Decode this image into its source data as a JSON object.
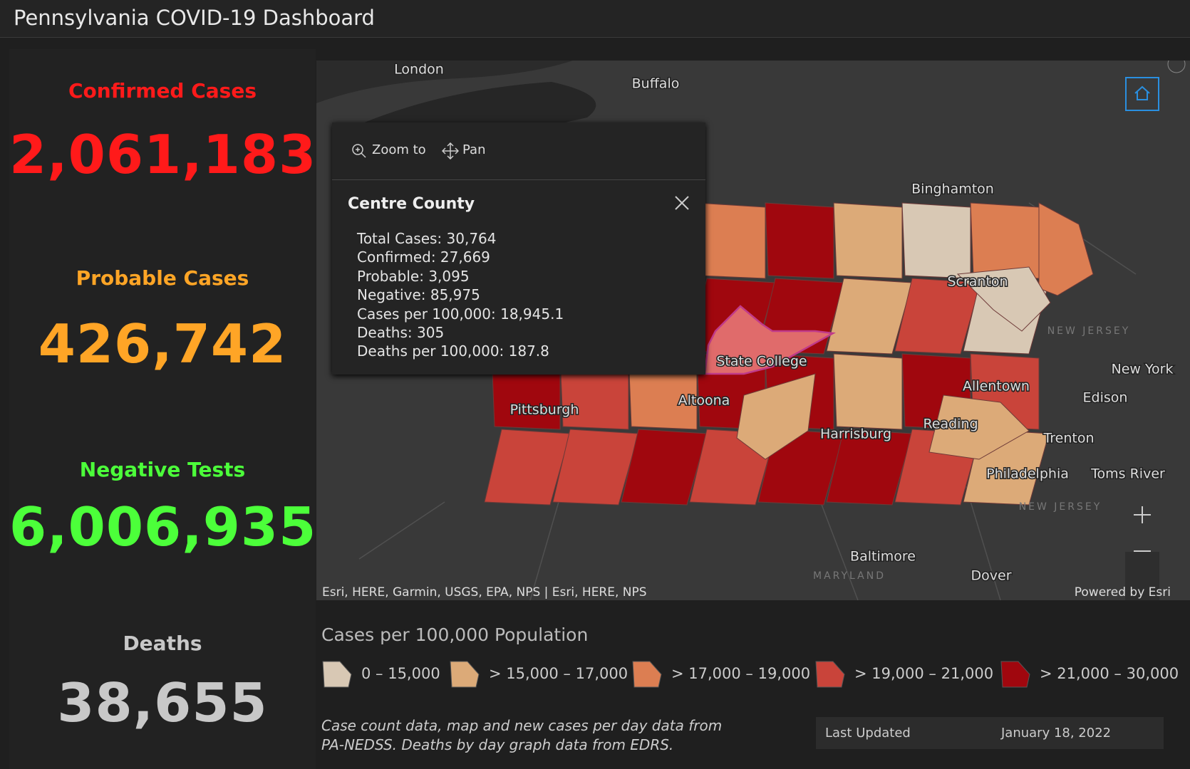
{
  "header": {
    "title": "Pennsylvania COVID-19 Dashboard"
  },
  "indicators": [
    {
      "label": "Confirmed Cases",
      "value": "2,061,183",
      "color": "#ff1a1a"
    },
    {
      "label": "Probable Cases",
      "value": "426,742",
      "color": "#ffa526"
    },
    {
      "label": "Negative Tests",
      "value": "6,006,935",
      "color": "#4cff3a"
    },
    {
      "label": "Deaths",
      "value": "38,655",
      "color": "#c8c8c8"
    }
  ],
  "map": {
    "places": [
      "London",
      "Buffalo",
      "Binghamton",
      "Scranton",
      "State College",
      "Altoona",
      "Pittsburgh",
      "Allentown",
      "Reading",
      "Harrisburg",
      "New York",
      "Edison",
      "Trenton",
      "Philadelphia",
      "Toms River",
      "Baltimore",
      "Dover"
    ],
    "regions": [
      "NEW JERSEY",
      "NEW JERSEY",
      "MARYLAND"
    ],
    "popup": {
      "tools": [
        "Zoom to",
        "Pan"
      ],
      "title": "Centre County",
      "lines": [
        "Total Cases: 30,764",
        "Confirmed: 27,669",
        "Probable: 3,095",
        "Negative: 85,975",
        "Cases per 100,000: 18,945.1",
        "Deaths: 305",
        "Deaths per 100,000: 187.8"
      ]
    },
    "attribution": "Esri, HERE, Garmin, USGS, EPA, NPS | Esri, HERE, NPS",
    "powered_by": "Powered by Esri"
  },
  "legend": {
    "title": "Cases per 100,000 Population",
    "classes": [
      {
        "label": "0 – 15,000",
        "color": "#d8c8b4"
      },
      {
        "label": "> 15,000 – 17,000",
        "color": "#dcaa78"
      },
      {
        "label": "> 17,000 – 19,000",
        "color": "#dc7e52"
      },
      {
        "label": "> 19,000 – 21,000",
        "color": "#c9443a"
      },
      {
        "label": "> 21,000 – 30,000",
        "color": "#a0070e"
      }
    ]
  },
  "footer": {
    "note": "Case count data, map and new cases per day data from PA-NEDSS.  Deaths by day graph data from EDRS.",
    "last_updated_label": "Last Updated",
    "last_updated": "January 18, 2022"
  }
}
